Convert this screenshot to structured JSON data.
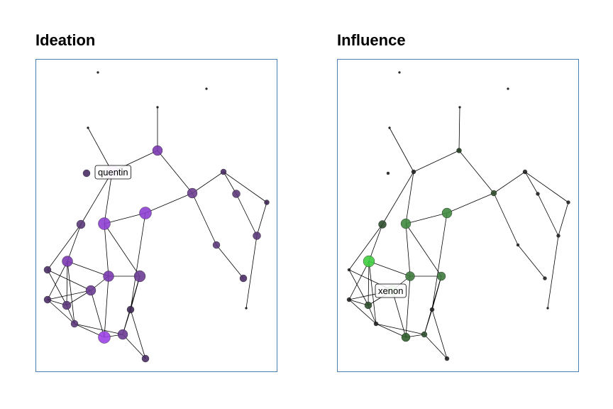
{
  "panels": [
    {
      "title": "Ideation",
      "metric_color": "#9b44e6",
      "tooltip": {
        "node": "quentin",
        "label": "quentin"
      }
    },
    {
      "title": "Influence",
      "metric_color": "#3fd33f",
      "tooltip": {
        "node": "xenon",
        "label": "xenon"
      }
    }
  ],
  "network": {
    "nodes": [
      {
        "id": "n1",
        "ideation": 0,
        "influence": 0
      },
      {
        "id": "n2",
        "ideation": 0,
        "influence": 0
      },
      {
        "id": "n3",
        "ideation": 0,
        "influence": 0
      },
      {
        "id": "n4",
        "ideation": 0,
        "influence": 0
      },
      {
        "id": "n5",
        "ideation": 0.55,
        "influence": 0.25
      },
      {
        "id": "quentin",
        "ideation": 1.0,
        "influence": 0
      },
      {
        "id": "n7",
        "ideation": 0.25,
        "influence": 0.2
      },
      {
        "id": "n8",
        "ideation": 0.2,
        "influence": 0
      },
      {
        "id": "n9",
        "ideation": 0.1,
        "influence": 0
      },
      {
        "id": "n10",
        "ideation": 0.1,
        "influence": 0
      },
      {
        "id": "n11",
        "ideation": 0.35,
        "influence": 0
      },
      {
        "id": "n12",
        "ideation": 0.1,
        "influence": 0
      },
      {
        "id": "n13",
        "ideation": 0.1,
        "influence": 0
      },
      {
        "id": "n14",
        "ideation": 0.75,
        "influence": 0.5
      },
      {
        "id": "n15",
        "ideation": 0.3,
        "influence": 0.25
      },
      {
        "id": "n16",
        "ideation": 0.75,
        "influence": 0.6
      },
      {
        "id": "n17",
        "ideation": 0.6,
        "influence": 0.95
      },
      {
        "id": "n18",
        "ideation": 0.2,
        "influence": 0
      },
      {
        "id": "n19",
        "ideation": 0.55,
        "influence": 0.5
      },
      {
        "id": "n20",
        "ideation": 0.45,
        "influence": 0.45
      },
      {
        "id": "xenon",
        "ideation": 0.7,
        "influence": 0.9
      },
      {
        "id": "n22",
        "ideation": 0.3,
        "influence": 0.25
      },
      {
        "id": "n23",
        "ideation": 0.25,
        "influence": 0
      },
      {
        "id": "n24",
        "ideation": 0.25,
        "influence": 0
      },
      {
        "id": "n25",
        "ideation": 0.3,
        "influence": 0
      },
      {
        "id": "n26",
        "ideation": 0.4,
        "influence": 0
      },
      {
        "id": "n27",
        "ideation": 0.85,
        "influence": 0.3
      },
      {
        "id": "n28",
        "ideation": 0.2,
        "influence": 0
      }
    ],
    "edges": [
      [
        "n3",
        "n5"
      ],
      [
        "n4",
        "quentin"
      ],
      [
        "quentin",
        "n5"
      ],
      [
        "quentin",
        "n8"
      ],
      [
        "n5",
        "n11"
      ],
      [
        "quentin",
        "n14"
      ],
      [
        "quentin",
        "n15"
      ],
      [
        "n8",
        "n14"
      ],
      [
        "n14",
        "n11"
      ],
      [
        "n14",
        "n16"
      ],
      [
        "n11",
        "n9"
      ],
      [
        "n9",
        "n12"
      ],
      [
        "n9",
        "n10"
      ],
      [
        "n10",
        "n12"
      ],
      [
        "n12",
        "n13"
      ],
      [
        "n10",
        "n13"
      ],
      [
        "n11",
        "n13"
      ],
      [
        "n11",
        "n18"
      ],
      [
        "n13",
        "n28"
      ],
      [
        "n14",
        "n19"
      ],
      [
        "n15",
        "n14"
      ],
      [
        "n15",
        "n16"
      ],
      [
        "n15",
        "n17"
      ],
      [
        "n15",
        "n20"
      ],
      [
        "n15",
        "n22"
      ],
      [
        "n16",
        "n19"
      ],
      [
        "n16",
        "n27"
      ],
      [
        "n17",
        "n20"
      ],
      [
        "n17",
        "n22"
      ],
      [
        "n17",
        "n23"
      ],
      [
        "n17",
        "n24"
      ],
      [
        "n17",
        "n25"
      ],
      [
        "n20",
        "xenon"
      ],
      [
        "n20",
        "n26"
      ],
      [
        "n20",
        "n27"
      ],
      [
        "n19",
        "xenon"
      ],
      [
        "n19",
        "n26"
      ],
      [
        "xenon",
        "n22"
      ],
      [
        "xenon",
        "n25"
      ],
      [
        "xenon",
        "n24"
      ],
      [
        "xenon",
        "n26"
      ],
      [
        "n22",
        "n23"
      ],
      [
        "n22",
        "n24"
      ],
      [
        "n23",
        "n24"
      ],
      [
        "n24",
        "n25"
      ],
      [
        "n25",
        "n27"
      ],
      [
        "n26",
        "n28"
      ],
      [
        "n26",
        "n27"
      ],
      [
        "n27",
        "n25"
      ],
      [
        "n23",
        "n25"
      ],
      [
        "n24",
        "xenon"
      ],
      [
        "n24",
        "n20"
      ],
      [
        "n27",
        "n16"
      ]
    ]
  }
}
